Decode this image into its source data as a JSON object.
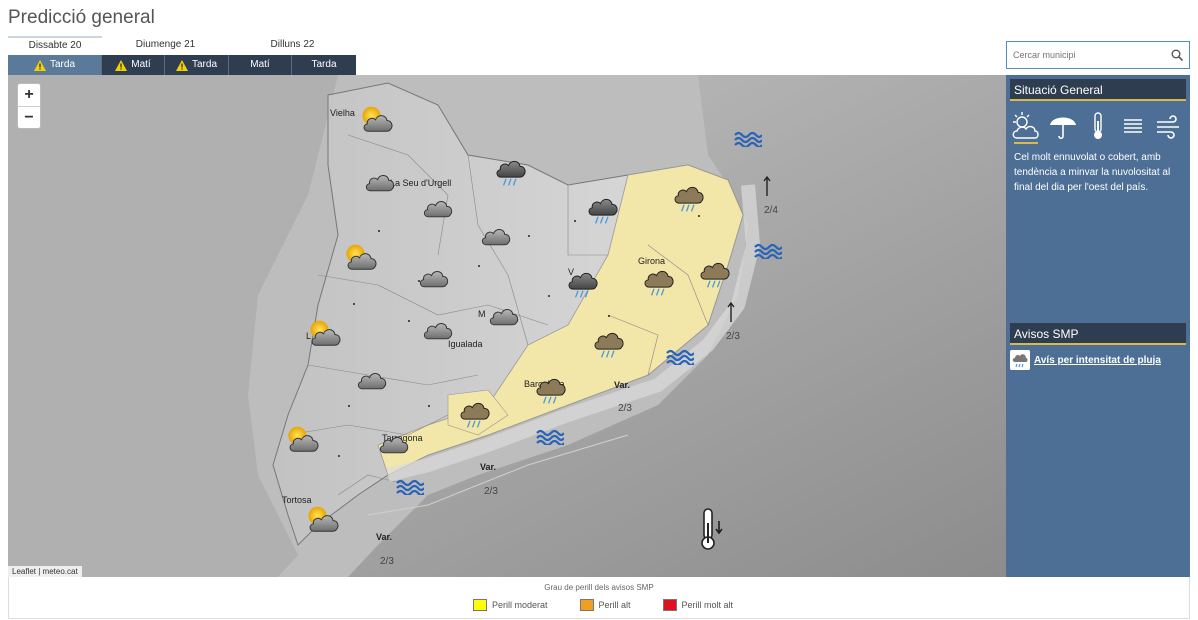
{
  "page": {
    "title": "Predicció general"
  },
  "days": [
    {
      "label": "Dissabte 20"
    },
    {
      "label": "Diumenge 21"
    },
    {
      "label": "Dilluns 22"
    }
  ],
  "periods": [
    {
      "label": "Tarda",
      "warning": true,
      "active": true
    },
    {
      "label": "Matí",
      "warning": true,
      "active": false
    },
    {
      "label": "Tarda",
      "warning": true,
      "active": false
    },
    {
      "label": "Matí",
      "warning": false,
      "active": false
    },
    {
      "label": "Tarda",
      "warning": false,
      "active": false
    }
  ],
  "search": {
    "placeholder": "Cercar municipi"
  },
  "map": {
    "zoom_in": "+",
    "zoom_out": "−",
    "attribution": "Leaflet | meteo.cat",
    "places": {
      "vielha": "Vielha",
      "seu": "La Seu d'Urgell",
      "girona": "Girona",
      "igualada": "Igualada",
      "barcelona": "Barcelona",
      "tarragona": "Tarragona",
      "tortosa": "Tortosa",
      "lleida": "L",
      "manresa": "M",
      "vic": "V"
    },
    "sea": {
      "var1": "Var.",
      "val1": "2/3",
      "var2": "Var.",
      "val2": "2/3",
      "var3": "Var.",
      "val3": "2/3",
      "val_ne": "2/4",
      "val_e": "2/3"
    },
    "warning_color": "#f2e7a8"
  },
  "situacio": {
    "title": "Situació General",
    "icons": [
      "sun-cloud-icon",
      "umbrella-icon",
      "thermometer-icon",
      "fog-icon",
      "wind-icon"
    ],
    "text": "Cel molt ennuvolat o cobert, amb tendència a minvar la nuvolositat al final del dia per l'oest del país."
  },
  "avisos": {
    "title": "Avisos SMP",
    "link": "Avís per intensitat de pluja"
  },
  "legend": {
    "title": "Grau de perill dels avisos SMP",
    "items": [
      {
        "label": "Perill moderat",
        "color": "#ffff00"
      },
      {
        "label": "Perill alt",
        "color": "#f0a020"
      },
      {
        "label": "Perill molt alt",
        "color": "#e01020"
      }
    ]
  }
}
